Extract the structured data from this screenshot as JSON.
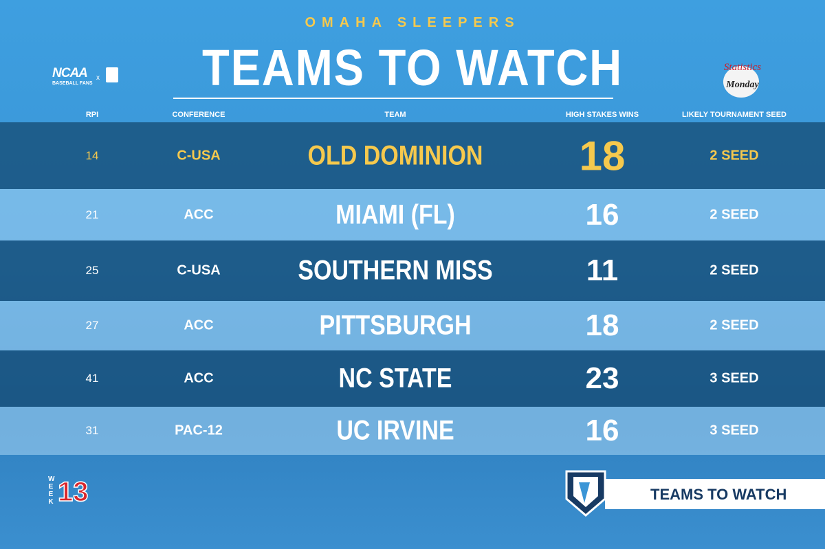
{
  "header": {
    "subtitle": "OMAHA SLEEPERS",
    "title": "TEAMS TO WATCH",
    "left_logo": {
      "name": "NCAA",
      "caption": "BASEBALL FANS",
      "separator": "x"
    },
    "right_logo": {
      "top": "Statistics",
      "bottom": "Monday"
    }
  },
  "table": {
    "columns": [
      "RPI",
      "CONFERENCE",
      "TEAM",
      "HIGH STAKES WINS",
      "LIKELY TOURNAMENT SEED"
    ],
    "rows": [
      [
        14,
        "C-USA",
        "OLD DOMINION",
        18,
        "2 SEED"
      ],
      [
        21,
        "ACC",
        "MIAMI (FL)",
        16,
        "2 SEED"
      ],
      [
        25,
        "C-USA",
        "SOUTHERN MISS",
        11,
        "2 SEED"
      ],
      [
        27,
        "ACC",
        "PITTSBURGH",
        18,
        "2 SEED"
      ],
      [
        41,
        "ACC",
        "NC STATE",
        23,
        "3 SEED"
      ],
      [
        31,
        "PAC-12",
        "UC IRVINE",
        16,
        "3 SEED"
      ]
    ]
  },
  "footer": {
    "week_label": "WEEK",
    "week_number": "13",
    "banner": "TEAMS TO WATCH"
  }
}
